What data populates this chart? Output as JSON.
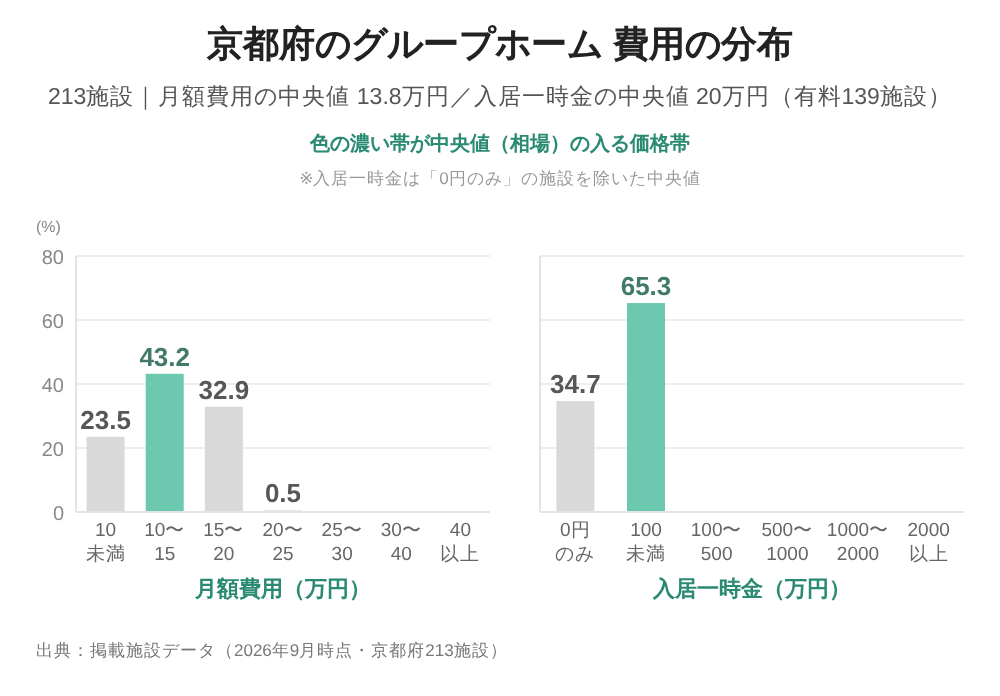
{
  "chart_data": [
    {
      "type": "bar",
      "title": "京都府のグループホーム 費用の分布",
      "subtitle": "213施設｜月額費用の中央値 13.8万円／入居一時金の中央値 20万円（有料139施設）",
      "annotations": [
        "色の濃い帯が中央値（相場）の入る価格帯",
        "※入居一時金は「0円のみ」の施設を除いた中央値",
        "出典：掲載施設データ（2026年9月時点・京都府213施設）"
      ],
      "categories": [
        "10\n未満",
        "10〜\n15",
        "15〜\n20",
        "20〜\n25",
        "25〜\n30",
        "30〜\n40",
        "40\n以上"
      ],
      "values": [
        23.5,
        43.2,
        32.9,
        0.5,
        0,
        0,
        0
      ],
      "colors": [
        "#d9d9d9",
        "#6cc9b0",
        "#d9d9d9",
        "#d9d9d9",
        "#d9d9d9",
        "#d9d9d9",
        "#d9d9d9"
      ],
      "value_labels": [
        "23.5",
        "43.2",
        "32.9",
        "0.5",
        null,
        null,
        null
      ],
      "xlabel": "月額費用（万円）",
      "ylabel": "(%)",
      "ylim": [
        0,
        80
      ],
      "yticks": [
        0,
        20,
        40,
        60,
        80
      ],
      "grid": "y"
    },
    {
      "type": "bar",
      "categories": [
        "0円のみ",
        "100\n未満",
        "100〜\n500",
        "500〜\n1000",
        "1000〜\n2000",
        "2000\n以上"
      ],
      "values": [
        34.7,
        65.3,
        0,
        0,
        0,
        0
      ],
      "colors": [
        "#d9d9d9",
        "#6cc9b0",
        "#d9d9d9",
        "#d9d9d9",
        "#d9d9d9",
        "#d9d9d9"
      ],
      "value_labels": [
        "34.7",
        "65.3",
        null,
        null,
        null,
        null
      ],
      "xlabel": "入居一時金（万円）",
      "ylim": [
        0,
        80
      ],
      "yticks": [
        0,
        20,
        40,
        60,
        80
      ],
      "grid": "y",
      "tick_labels": "x"
    }
  ]
}
